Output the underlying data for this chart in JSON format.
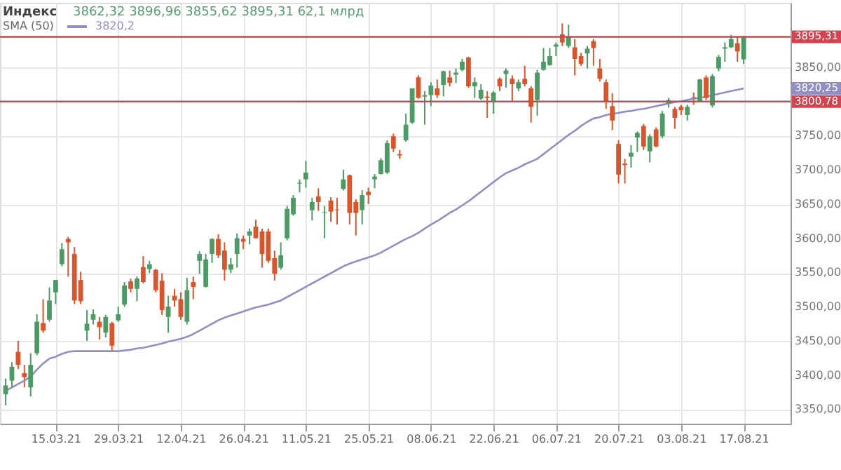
{
  "chart_data": {
    "type": "candlestick",
    "title": "Индекс",
    "annotations": [
      "3862,32  3896,96  3855,62  3895,31  62,1 млрд",
      "3820,25",
      "3820,2"
    ],
    "categories": [
      null,
      null,
      null,
      null,
      null,
      null,
      null,
      null,
      "15.03.21",
      null,
      null,
      null,
      null,
      null,
      null,
      null,
      null,
      null,
      "29.03.21",
      null,
      null,
      null,
      null,
      null,
      null,
      null,
      null,
      null,
      "12.04.21",
      null,
      null,
      null,
      null,
      null,
      null,
      null,
      null,
      null,
      "26.04.21",
      null,
      null,
      null,
      null,
      null,
      null,
      null,
      null,
      null,
      "11.05.21",
      null,
      null,
      null,
      null,
      null,
      null,
      null,
      null,
      null,
      "25.05.21",
      null,
      null,
      null,
      null,
      null,
      null,
      null,
      null,
      null,
      "08.06.21",
      null,
      null,
      null,
      null,
      null,
      null,
      null,
      null,
      null,
      "22.06.21",
      null,
      null,
      null,
      null,
      null,
      null,
      null,
      null,
      null,
      "06.07.21",
      null,
      null,
      null,
      null,
      null,
      null,
      null,
      null,
      null,
      "20.07.21",
      null,
      null,
      null,
      null,
      null,
      null,
      null,
      null,
      null,
      "03.08.21",
      null,
      null,
      null,
      null,
      null,
      null,
      null,
      null,
      null,
      "17.08.21"
    ],
    "ohlc": [
      [
        3373,
        3396,
        3357,
        3386
      ],
      [
        3393,
        3420,
        3383,
        3413
      ],
      [
        3435,
        3451,
        3410,
        3416
      ],
      [
        3404,
        3416,
        3383,
        3398
      ],
      [
        3383,
        3433,
        3370,
        3416
      ],
      [
        3433,
        3490,
        3430,
        3479
      ],
      [
        3477,
        3512,
        3463,
        3466
      ],
      [
        3482,
        3529,
        3479,
        3510
      ],
      [
        3522,
        3540,
        3505,
        3540
      ],
      [
        3563,
        3594,
        3560,
        3585
      ],
      [
        3600,
        3603,
        3545,
        3595
      ],
      [
        3578,
        3588,
        3505,
        3510
      ],
      [
        3540,
        3552,
        3505,
        3509
      ],
      [
        3466,
        3496,
        3451,
        3476
      ],
      [
        3482,
        3497,
        3475,
        3490
      ],
      [
        3479,
        3486,
        3453,
        3471
      ],
      [
        3463,
        3489,
        3456,
        3486
      ],
      [
        3477,
        3479,
        3435,
        3444
      ],
      [
        3481,
        3501,
        3479,
        3490
      ],
      [
        3504,
        3537,
        3501,
        3532
      ],
      [
        3538,
        3542,
        3522,
        3527
      ],
      [
        3527,
        3545,
        3509,
        3542
      ],
      [
        3559,
        3575,
        3535,
        3537
      ],
      [
        3556,
        3568,
        3550,
        3563
      ],
      [
        3555,
        3556,
        3522,
        3525
      ],
      [
        3539,
        3550,
        3489,
        3496
      ],
      [
        3486,
        3517,
        3463,
        3501
      ],
      [
        3517,
        3527,
        3501,
        3510
      ],
      [
        3512,
        3522,
        3482,
        3486
      ],
      [
        3479,
        3543,
        3475,
        3525
      ],
      [
        3537,
        3545,
        3512,
        3530
      ],
      [
        3568,
        3582,
        3549,
        3578
      ],
      [
        3530,
        3578,
        3529,
        3570
      ],
      [
        3578,
        3601,
        3565,
        3600
      ],
      [
        3600,
        3607,
        3572,
        3576
      ],
      [
        3583,
        3595,
        3539,
        3555
      ],
      [
        3555,
        3572,
        3550,
        3563
      ],
      [
        3578,
        3608,
        3558,
        3601
      ],
      [
        3600,
        3605,
        3585,
        3596
      ],
      [
        3605,
        3615,
        3592,
        3611
      ],
      [
        3618,
        3628,
        3601,
        3601
      ],
      [
        3611,
        3615,
        3558,
        3578
      ],
      [
        3611,
        3615,
        3565,
        3568
      ],
      [
        3572,
        3583,
        3539,
        3549
      ],
      [
        3558,
        3595,
        3555,
        3576
      ],
      [
        3601,
        3648,
        3598,
        3644
      ],
      [
        3636,
        3664,
        3634,
        3660
      ],
      [
        3681,
        3687,
        3668,
        3682
      ],
      [
        3687,
        3714,
        3675,
        3697
      ],
      [
        3642,
        3660,
        3627,
        3654
      ],
      [
        3662,
        3674,
        3641,
        3654
      ],
      [
        3638,
        3648,
        3601,
        3639
      ],
      [
        3656,
        3661,
        3625,
        3640
      ],
      [
        3643,
        3660,
        3621,
        3642
      ],
      [
        3673,
        3701,
        3671,
        3687
      ],
      [
        3693,
        3694,
        3621,
        3638
      ],
      [
        3654,
        3658,
        3605,
        3638
      ],
      [
        3642,
        3671,
        3621,
        3664
      ],
      [
        3669,
        3675,
        3651,
        3664
      ],
      [
        3687,
        3695,
        3674,
        3691
      ],
      [
        3695,
        3718,
        3694,
        3715
      ],
      [
        3697,
        3744,
        3695,
        3740
      ],
      [
        3750,
        3754,
        3727,
        3732
      ],
      [
        3724,
        3730,
        3717,
        3722
      ],
      [
        3744,
        3783,
        3742,
        3767
      ],
      [
        3770,
        3820,
        3768,
        3820
      ],
      [
        3836,
        3839,
        3805,
        3806
      ],
      [
        3808,
        3816,
        3767,
        3810
      ],
      [
        3810,
        3829,
        3794,
        3824
      ],
      [
        3820,
        3833,
        3806,
        3810
      ],
      [
        3825,
        3846,
        3808,
        3845
      ],
      [
        3836,
        3846,
        3823,
        3828
      ],
      [
        3840,
        3849,
        3828,
        3843
      ],
      [
        3847,
        3863,
        3845,
        3859
      ],
      [
        3865,
        3866,
        3821,
        3823
      ],
      [
        3823,
        3836,
        3806,
        3829
      ],
      [
        3805,
        3826,
        3803,
        3818
      ],
      [
        3808,
        3816,
        3777,
        3806
      ],
      [
        3801,
        3816,
        3783,
        3814
      ],
      [
        3834,
        3836,
        3816,
        3823
      ],
      [
        3841,
        3849,
        3821,
        3846
      ],
      [
        3834,
        3839,
        3801,
        3826
      ],
      [
        3820,
        3833,
        3816,
        3829
      ],
      [
        3834,
        3853,
        3823,
        3826
      ],
      [
        3820,
        3823,
        3770,
        3793
      ],
      [
        3803,
        3847,
        3780,
        3843
      ],
      [
        3847,
        3879,
        3846,
        3859
      ],
      [
        3854,
        3879,
        3853,
        3867
      ],
      [
        3881,
        3887,
        3867,
        3884
      ],
      [
        3899,
        3915,
        3882,
        3887
      ],
      [
        3882,
        3913,
        3879,
        3896
      ],
      [
        3880,
        3892,
        3839,
        3863
      ],
      [
        3867,
        3872,
        3853,
        3856
      ],
      [
        3871,
        3882,
        3849,
        3878
      ],
      [
        3889,
        3892,
        3853,
        3879
      ],
      [
        3849,
        3863,
        3830,
        3834
      ],
      [
        3829,
        3833,
        3790,
        3800
      ],
      [
        3794,
        3813,
        3759,
        3773
      ],
      [
        3739,
        3744,
        3681,
        3694
      ],
      [
        3710,
        3717,
        3681,
        3708
      ],
      [
        3720,
        3737,
        3704,
        3726
      ],
      [
        3748,
        3757,
        3727,
        3755
      ],
      [
        3765,
        3768,
        3730,
        3735
      ],
      [
        3728,
        3753,
        3712,
        3750
      ],
      [
        3760,
        3763,
        3734,
        3735
      ],
      [
        3750,
        3787,
        3747,
        3783
      ],
      [
        3798,
        3806,
        3792,
        3803
      ],
      [
        3790,
        3793,
        3761,
        3777
      ],
      [
        3793,
        3796,
        3781,
        3788
      ],
      [
        3781,
        3796,
        3773,
        3793
      ],
      [
        3807,
        3814,
        3796,
        3806
      ],
      [
        3801,
        3834,
        3800,
        3833
      ],
      [
        3836,
        3839,
        3803,
        3806
      ],
      [
        3795,
        3841,
        3792,
        3838
      ],
      [
        3849,
        3869,
        3845,
        3866
      ],
      [
        3878,
        3887,
        3859,
        3880
      ],
      [
        3880,
        3898,
        3879,
        3892
      ],
      [
        3886,
        3896,
        3859,
        3874
      ],
      [
        3862.32,
        3896.96,
        3855.62,
        3895.31
      ]
    ],
    "colors": [
      "#4e9a66",
      "#4e9a66",
      "#d9552b",
      "#d9552b",
      "#4e9a66",
      "#4e9a66",
      "#d9552b",
      "#4e9a66",
      "#4e9a66",
      "#4e9a66",
      "#d9552b",
      "#d9552b",
      "#d9552b",
      "#4e9a66",
      "#4e9a66",
      "#d9552b",
      "#4e9a66",
      "#d9552b",
      "#4e9a66",
      "#4e9a66",
      "#d9552b",
      "#4e9a66",
      "#d9552b",
      "#4e9a66",
      "#d9552b",
      "#d9552b",
      "#4e9a66",
      "#d9552b",
      "#d9552b",
      "#4e9a66",
      "#d9552b",
      "#4e9a66",
      "#4e9a66",
      "#4e9a66",
      "#d9552b",
      "#d9552b",
      "#4e9a66",
      "#4e9a66",
      "#d9552b",
      "#4e9a66",
      "#d9552b",
      "#d9552b",
      "#d9552b",
      "#d9552b",
      "#4e9a66",
      "#4e9a66",
      "#4e9a66",
      "#4e9a66",
      "#4e9a66",
      "#4e9a66",
      "#d9552b",
      "#4e9a66",
      "#d9552b",
      "#d9552b",
      "#4e9a66",
      "#d9552b",
      "#d9552b",
      "#4e9a66",
      "#d9552b",
      "#4e9a66",
      "#4e9a66",
      "#4e9a66",
      "#d9552b",
      "#d9552b",
      "#4e9a66",
      "#4e9a66",
      "#d9552b",
      "#4e9a66",
      "#4e9a66",
      "#d9552b",
      "#4e9a66",
      "#d9552b",
      "#4e9a66",
      "#4e9a66",
      "#d9552b",
      "#4e9a66",
      "#4e9a66",
      "#d9552b",
      "#4e9a66",
      "#d9552b",
      "#4e9a66",
      "#d9552b",
      "#4e9a66",
      "#d9552b",
      "#d9552b",
      "#4e9a66",
      "#4e9a66",
      "#4e9a66",
      "#4e9a66",
      "#d9552b",
      "#4e9a66",
      "#d9552b",
      "#d9552b",
      "#4e9a66",
      "#d9552b",
      "#d9552b",
      "#d9552b",
      "#d9552b",
      "#d9552b",
      "#d9552b",
      "#4e9a66",
      "#4e9a66",
      "#d9552b",
      "#4e9a66",
      "#d9552b",
      "#4e9a66",
      "#4e9a66",
      "#d9552b",
      "#d9552b",
      "#4e9a66",
      "#d9552b",
      "#4e9a66",
      "#d9552b",
      "#4e9a66",
      "#4e9a66",
      "#4e9a66",
      "#4e9a66",
      "#d9552b",
      "#4e9a66"
    ],
    "series": [
      {
        "type": "line",
        "name": "SMA (50)",
        "color": "#8f8fc4",
        "values": [
          3378,
          3383,
          3388,
          3393,
          3399,
          3409,
          3418,
          3425,
          3428,
          3432,
          3435,
          3436,
          3436,
          3436,
          3436,
          3436,
          3436,
          3436,
          3436,
          3437,
          3438,
          3440,
          3441,
          3443,
          3445,
          3447,
          3450,
          3452,
          3454,
          3457,
          3461,
          3466,
          3471,
          3476,
          3481,
          3485,
          3488,
          3491,
          3494,
          3497,
          3500,
          3502,
          3504,
          3507,
          3510,
          3515,
          3520,
          3525,
          3530,
          3535,
          3540,
          3545,
          3550,
          3555,
          3560,
          3564,
          3567,
          3570,
          3573,
          3576,
          3580,
          3585,
          3590,
          3595,
          3600,
          3604,
          3609,
          3615,
          3621,
          3626,
          3632,
          3638,
          3643,
          3649,
          3655,
          3662,
          3669,
          3676,
          3683,
          3690,
          3696,
          3700,
          3704,
          3709,
          3713,
          3717,
          3724,
          3731,
          3738,
          3745,
          3752,
          3758,
          3765,
          3771,
          3776,
          3778,
          3781,
          3783,
          3784,
          3786,
          3787,
          3789,
          3790,
          3792,
          3794,
          3796,
          3798,
          3800,
          3801,
          3803,
          3805,
          3806,
          3808,
          3810,
          3812,
          3814,
          3816,
          3818,
          3820
        ]
      }
    ],
    "ref_lines": [
      {
        "axis": "y",
        "value": 3895.31,
        "label": "3895,31",
        "color": "#d0454f"
      },
      {
        "axis": "y",
        "value": 3800.78,
        "label": "3800,78",
        "color": "#d0454f"
      }
    ],
    "ylim": [
      3330,
      3945
    ],
    "yticks": [
      {
        "value": 3350,
        "label": "3350,00"
      },
      {
        "value": 3400,
        "label": "3400,00"
      },
      {
        "value": 3450,
        "label": "3450,00"
      },
      {
        "value": 3500,
        "label": "3500,00"
      },
      {
        "value": 3550,
        "label": "3550,00"
      },
      {
        "value": 3600,
        "label": "3600,00"
      },
      {
        "value": 3650,
        "label": "3650,00"
      },
      {
        "value": 3700,
        "label": "3700,00"
      },
      {
        "value": 3750,
        "label": "3750,00"
      },
      {
        "value": 3800,
        "label": null
      },
      {
        "value": 3850,
        "label": "3850,00"
      }
    ],
    "grid": true,
    "legend": "top left"
  }
}
